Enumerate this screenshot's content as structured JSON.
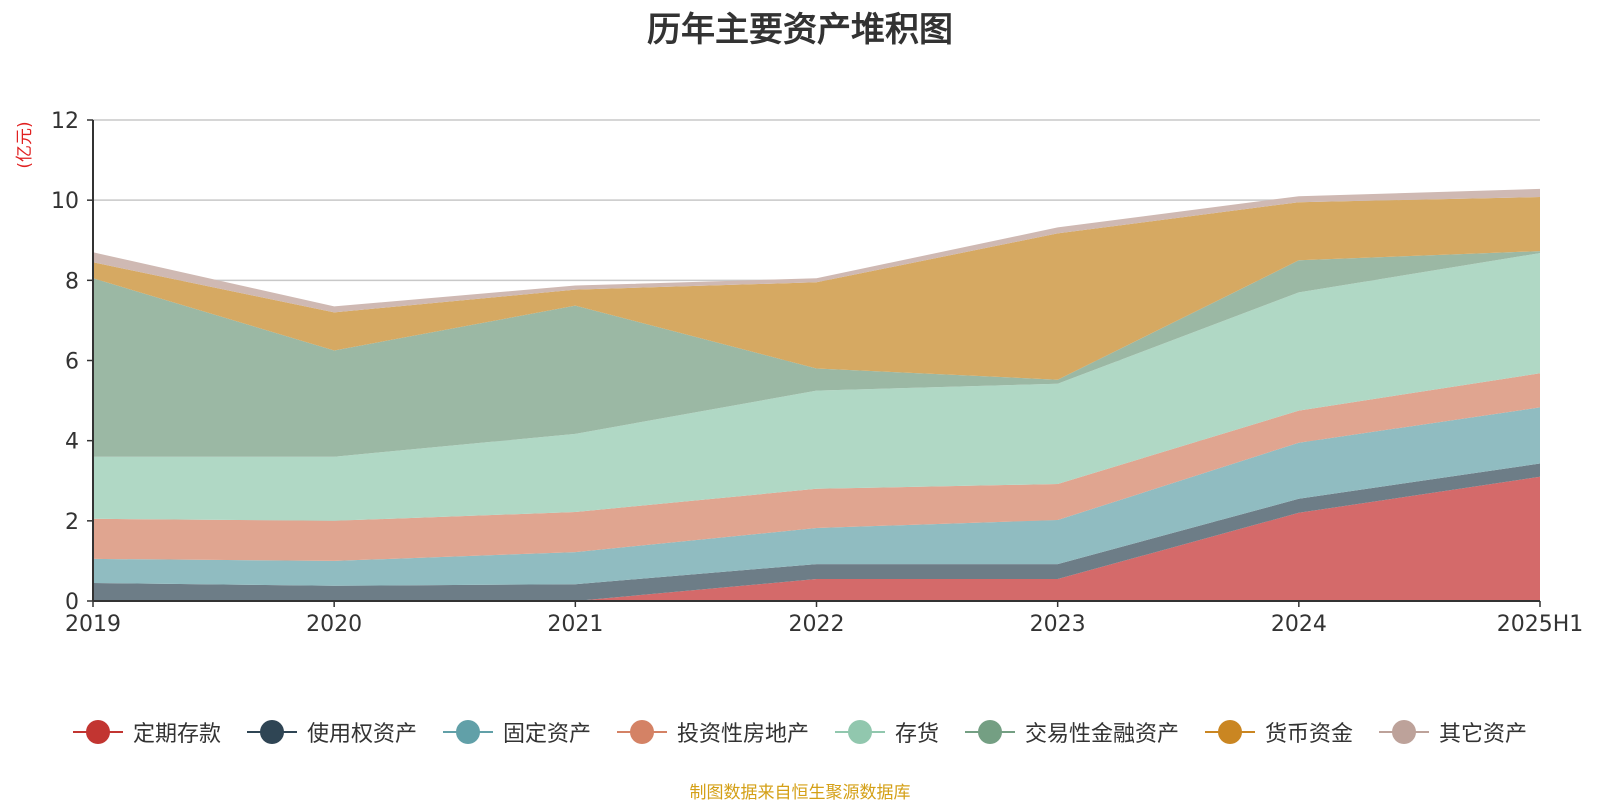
{
  "chart_data": {
    "type": "area",
    "stacked": true,
    "title": "历年主要资产堆积图",
    "ylabel": "(亿元)",
    "xlabel": "",
    "ylim": [
      0,
      12
    ],
    "yticks": [
      0,
      2,
      4,
      6,
      8,
      10,
      12
    ],
    "categories": [
      "2019",
      "2020",
      "2021",
      "2022",
      "2023",
      "2024",
      "2025H1"
    ],
    "series": [
      {
        "name": "定期存款",
        "color": "#c23531",
        "fill": "#d46a6a",
        "values": [
          0,
          0,
          0,
          0.55,
          0.55,
          2.2,
          3.1
        ]
      },
      {
        "name": "使用权资产",
        "color": "#2f4554",
        "fill": "#6d7d87",
        "values": [
          0.45,
          0.38,
          0.42,
          0.37,
          0.37,
          0.35,
          0.33
        ]
      },
      {
        "name": "固定资产",
        "color": "#61a0a8",
        "fill": "#90bcc1",
        "values": [
          0.6,
          0.62,
          0.8,
          0.9,
          1.1,
          1.4,
          1.4
        ]
      },
      {
        "name": "投资性房地产",
        "color": "#d48265",
        "fill": "#e0a590",
        "values": [
          1.0,
          1.0,
          1.0,
          0.98,
          0.9,
          0.8,
          0.85
        ]
      },
      {
        "name": "存货",
        "color": "#91c7ae",
        "fill": "#b0d8c5",
        "values": [
          1.55,
          1.6,
          1.95,
          2.45,
          2.5,
          2.95,
          3.0
        ]
      },
      {
        "name": "交易性金融资产",
        "color": "#749f83",
        "fill": "#9bb8a4",
        "values": [
          4.45,
          2.65,
          3.2,
          0.55,
          0.1,
          0.8,
          0.05
        ]
      },
      {
        "name": "货币资金",
        "color": "#ca8622",
        "fill": "#d6a962",
        "values": [
          0.4,
          0.95,
          0.4,
          2.15,
          3.65,
          1.45,
          1.35
        ]
      },
      {
        "name": "其它资产",
        "color": "#bda29a",
        "fill": "#cfb9b3",
        "values": [
          0.25,
          0.15,
          0.1,
          0.1,
          0.15,
          0.15,
          0.2
        ]
      }
    ],
    "grid": true,
    "legend_position": "bottom"
  },
  "source_note": "制图数据来自恒生聚源数据库"
}
